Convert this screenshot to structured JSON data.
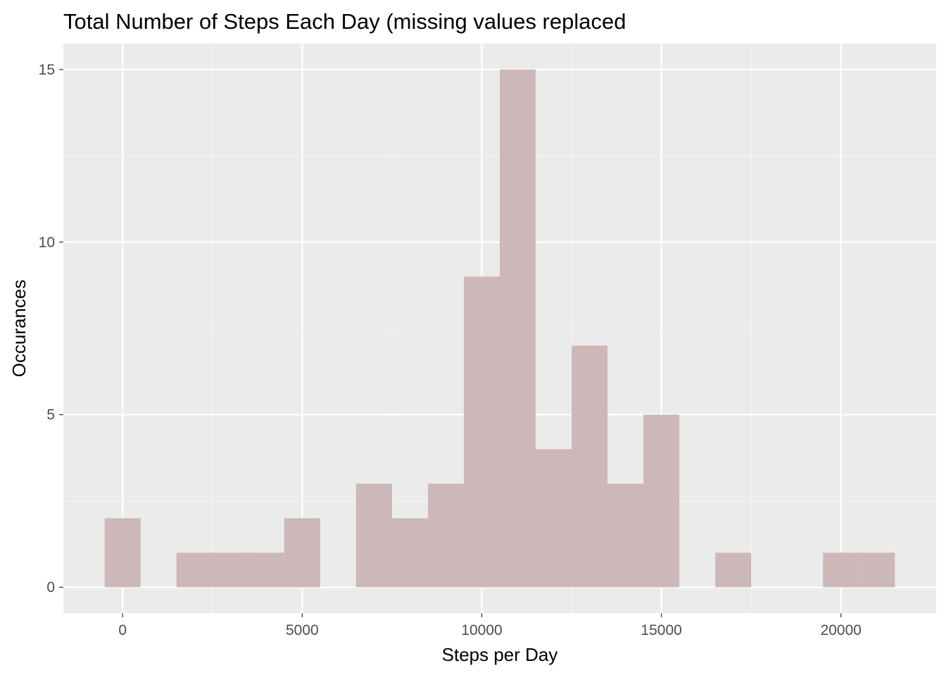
{
  "chart_data": {
    "type": "bar",
    "title": "Total Number of Steps Each Day (missing values replaced",
    "xlabel": "Steps per Day",
    "ylabel": "Occurances",
    "bin_width": 1000,
    "bins": [
      {
        "x": 0,
        "count": 2
      },
      {
        "x": 1000,
        "count": 0
      },
      {
        "x": 2000,
        "count": 1
      },
      {
        "x": 3000,
        "count": 1
      },
      {
        "x": 4000,
        "count": 1
      },
      {
        "x": 5000,
        "count": 2
      },
      {
        "x": 6000,
        "count": 0
      },
      {
        "x": 7000,
        "count": 3
      },
      {
        "x": 8000,
        "count": 2
      },
      {
        "x": 9000,
        "count": 3
      },
      {
        "x": 10000,
        "count": 9
      },
      {
        "x": 11000,
        "count": 15
      },
      {
        "x": 12000,
        "count": 4
      },
      {
        "x": 13000,
        "count": 7
      },
      {
        "x": 14000,
        "count": 3
      },
      {
        "x": 15000,
        "count": 5
      },
      {
        "x": 16000,
        "count": 0
      },
      {
        "x": 17000,
        "count": 1
      },
      {
        "x": 18000,
        "count": 0
      },
      {
        "x": 19000,
        "count": 0
      },
      {
        "x": 20000,
        "count": 1
      },
      {
        "x": 21000,
        "count": 1
      }
    ],
    "xlim": [
      -1650,
      22650
    ],
    "ylim": [
      -0.75,
      15.75
    ],
    "x_ticks": [
      0,
      5000,
      10000,
      15000,
      20000
    ],
    "x_tick_labels": [
      "0",
      "5000",
      "10000",
      "15000",
      "20000"
    ],
    "y_ticks": [
      0,
      5,
      10,
      15
    ],
    "y_tick_labels": [
      "0",
      "5",
      "10",
      "15"
    ],
    "grid": true,
    "colors": {
      "panel_background": "#ebebeb",
      "grid_major": "#ffffff",
      "grid_minor": "#f5f5f5",
      "bar_fill": "#ccb8b8",
      "tick_text": "#4d4d4d",
      "tick_mark": "#333333"
    }
  }
}
